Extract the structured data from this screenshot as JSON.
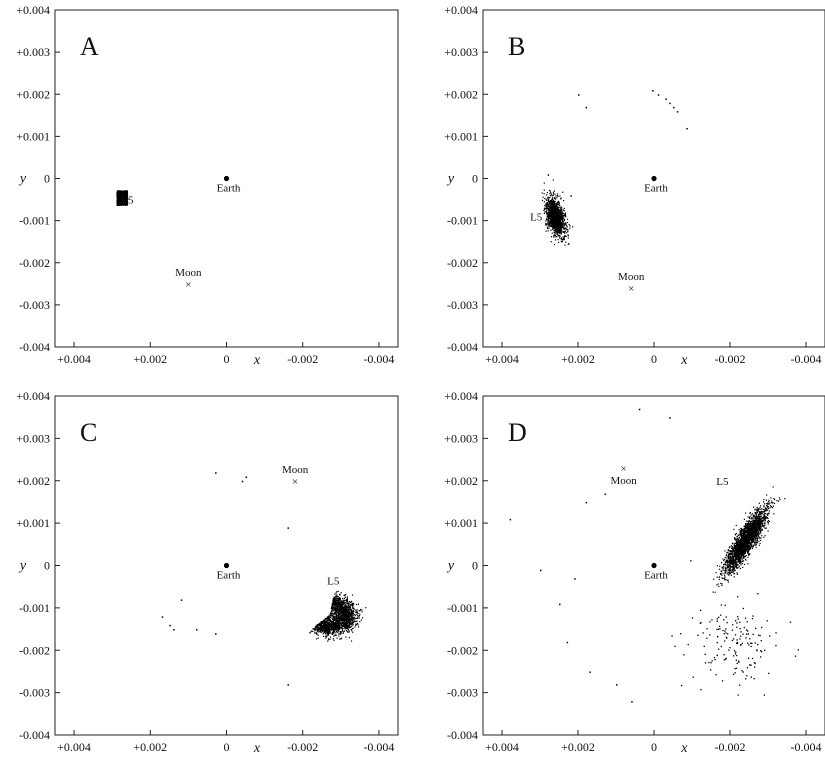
{
  "chart_data": [
    {
      "type": "scatter",
      "panel": "A",
      "xlabel": "x",
      "ylabel": "y",
      "xlim": [
        0.0045,
        -0.0045
      ],
      "ylim": [
        -0.004,
        0.004
      ],
      "x_ticks": [
        "+0.004",
        "+0.002",
        "0",
        "-0.002",
        "-0.004"
      ],
      "y_ticks": [
        "+0.004",
        "+0.003",
        "+0.002",
        "+0.001",
        "0",
        "-0.001",
        "-0.002",
        "-0.003",
        "-0.004"
      ],
      "bodies": [
        {
          "name": "Earth",
          "x": 0.0,
          "y": 0.0,
          "marker": "dot"
        },
        {
          "name": "Moon",
          "x": 0.001,
          "y": -0.0025,
          "marker": "cross"
        },
        {
          "name": "L5",
          "x": 0.0026,
          "y": -0.0005,
          "marker": "none"
        }
      ],
      "clouds": [
        {
          "cx": 0.00275,
          "cy": -0.00045,
          "sx": 0.00012,
          "sy": 0.00017,
          "tilt": 0,
          "n": 1100,
          "striped": true
        }
      ],
      "scatter": []
    },
    {
      "type": "scatter",
      "panel": "B",
      "xlabel": "x",
      "ylabel": "y",
      "xlim": [
        0.0045,
        -0.0045
      ],
      "ylim": [
        -0.004,
        0.004
      ],
      "x_ticks": [
        "+0.004",
        "+0.002",
        "0",
        "-0.002",
        "-0.004"
      ],
      "y_ticks": [
        "+0.004",
        "+0.003",
        "+0.002",
        "+0.001",
        "0",
        "-0.001",
        "-0.002",
        "-0.003",
        "-0.004"
      ],
      "bodies": [
        {
          "name": "Earth",
          "x": 0.0,
          "y": 0.0,
          "marker": "dot"
        },
        {
          "name": "Moon",
          "x": 0.0006,
          "y": -0.0026,
          "marker": "cross"
        },
        {
          "name": "L5",
          "x": 0.0031,
          "y": -0.0009,
          "marker": "none"
        }
      ],
      "clouds": [
        {
          "cx": 0.0026,
          "cy": -0.0009,
          "sx": 0.00021,
          "sy": 0.00048,
          "tilt": -18,
          "n": 1300,
          "striped": false
        }
      ],
      "scatter": [
        [
          0.002,
          0.002
        ],
        [
          0.0018,
          0.0017
        ],
        [
          5e-05,
          0.0021
        ],
        [
          -0.0001,
          0.002
        ],
        [
          -0.0003,
          0.0019
        ],
        [
          -0.0004,
          0.0018
        ],
        [
          -0.0005,
          0.0017
        ],
        [
          -0.0006,
          0.0016
        ],
        [
          -0.00085,
          0.0012
        ],
        [
          0.0028,
          0.0001
        ],
        [
          0.0022,
          -0.0004
        ]
      ]
    },
    {
      "type": "scatter",
      "panel": "C",
      "xlabel": "x",
      "ylabel": "y",
      "xlim": [
        0.0045,
        -0.0045
      ],
      "ylim": [
        -0.004,
        0.004
      ],
      "x_ticks": [
        "+0.004",
        "+0.002",
        "0",
        "-0.002",
        "-0.004"
      ],
      "y_ticks": [
        "+0.004",
        "+0.003",
        "+0.002",
        "+0.001",
        "0",
        "-0.001",
        "-0.002",
        "-0.003",
        "-0.004"
      ],
      "bodies": [
        {
          "name": "Earth",
          "x": 0.0,
          "y": 0.0,
          "marker": "dot"
        },
        {
          "name": "Moon",
          "x": -0.0018,
          "y": 0.002,
          "marker": "cross"
        },
        {
          "name": "L5",
          "x": -0.0028,
          "y": -0.00035,
          "marker": "none"
        }
      ],
      "clouds": [
        {
          "cx": -0.0027,
          "cy": -0.0011,
          "sx": 0.00045,
          "sy": 0.00035,
          "tilt": 0,
          "n": 1700,
          "crescent": true
        }
      ],
      "scatter": [
        [
          0.0003,
          0.0022
        ],
        [
          -0.0005,
          0.0021
        ],
        [
          -0.0004,
          0.002
        ],
        [
          0.0017,
          -0.0012
        ],
        [
          0.0015,
          -0.0014
        ],
        [
          0.0014,
          -0.0015
        ],
        [
          0.0008,
          -0.0015
        ],
        [
          0.0003,
          -0.0016
        ],
        [
          -0.0016,
          0.0009
        ],
        [
          -0.0016,
          -0.0028
        ],
        [
          0.0012,
          -0.0008
        ]
      ]
    },
    {
      "type": "scatter",
      "panel": "D",
      "xlabel": "x",
      "ylabel": "y",
      "xlim": [
        0.0045,
        -0.0045
      ],
      "ylim": [
        -0.004,
        0.004
      ],
      "x_ticks": [
        "+0.004",
        "+0.002",
        "0",
        "-0.002",
        "-0.004"
      ],
      "y_ticks": [
        "+0.004",
        "+0.003",
        "+0.002",
        "+0.001",
        "0",
        "-0.001",
        "-0.002",
        "-0.003",
        "-0.004"
      ],
      "bodies": [
        {
          "name": "Earth",
          "x": 0.0,
          "y": 0.0,
          "marker": "dot"
        },
        {
          "name": "Moon",
          "x": 0.0008,
          "y": 0.0023,
          "marker": "cross"
        },
        {
          "name": "L5",
          "x": -0.0018,
          "y": 0.002,
          "marker": "none"
        }
      ],
      "clouds": [
        {
          "cx": -0.0024,
          "cy": 0.0006,
          "sx": 0.00023,
          "sy": 0.00088,
          "tilt": 35,
          "n": 2200,
          "striped": false
        },
        {
          "cx": -0.0021,
          "cy": -0.0018,
          "sx": 0.0012,
          "sy": 0.0009,
          "tilt": 0,
          "n": 160,
          "sparse": true
        }
      ],
      "scatter": [
        [
          0.0038,
          0.0011
        ],
        [
          0.003,
          -0.0001
        ],
        [
          0.0025,
          -0.0009
        ],
        [
          0.0021,
          -0.0003
        ],
        [
          0.0018,
          0.0015
        ],
        [
          0.0013,
          0.0017
        ],
        [
          0.001,
          -0.0028
        ],
        [
          0.0006,
          -0.0032
        ],
        [
          0.0004,
          0.0037
        ],
        [
          -0.0004,
          0.0035
        ],
        [
          0.0023,
          -0.0018
        ],
        [
          0.0017,
          -0.0025
        ]
      ]
    }
  ]
}
